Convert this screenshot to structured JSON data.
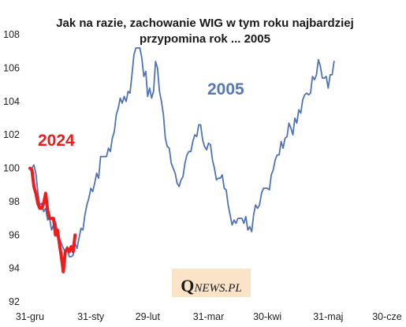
{
  "chart_data": {
    "type": "line",
    "title": "Jak na razie, zachowanie WIG w tym roku najbardziej przypomina rok ... 2005",
    "title_lines": [
      "Jak na razie, zachowanie WIG w tym roku najbardziej",
      "przypomina rok ... 2005"
    ],
    "xlabel": "",
    "ylabel": "",
    "ylim": [
      92,
      108
    ],
    "yticks": [
      92,
      94,
      96,
      98,
      100,
      102,
      104,
      106,
      108
    ],
    "xlim": [
      0,
      182
    ],
    "xticks": [
      {
        "x": 0,
        "label": "31-gru"
      },
      {
        "x": 31,
        "label": "31-sty"
      },
      {
        "x": 60,
        "label": "29-lut"
      },
      {
        "x": 91,
        "label": "31-mar"
      },
      {
        "x": 121,
        "label": "30-kwi"
      },
      {
        "x": 152,
        "label": "31-maj"
      },
      {
        "x": 182,
        "label": "30-cze"
      }
    ],
    "grid": false,
    "legend": "none",
    "series": [
      {
        "name": "2005",
        "color": "#4f73b6",
        "points": [
          [
            0,
            100.0
          ],
          [
            1,
            100.0
          ],
          [
            2,
            100.2
          ],
          [
            3,
            99.7
          ],
          [
            4,
            98.6
          ],
          [
            5,
            97.8
          ],
          [
            6,
            97.9
          ],
          [
            7,
            97.4
          ],
          [
            8,
            97.6
          ],
          [
            9,
            96.9
          ],
          [
            10,
            97.0
          ],
          [
            11,
            96.3
          ],
          [
            12,
            96.6
          ],
          [
            13,
            96.8
          ],
          [
            14,
            96.2
          ],
          [
            15,
            95.8
          ],
          [
            16,
            95.5
          ],
          [
            17,
            95.2
          ],
          [
            18,
            95.0
          ],
          [
            19,
            95.3
          ],
          [
            20,
            94.7
          ],
          [
            21,
            94.7
          ],
          [
            22,
            94.8
          ],
          [
            23,
            95.5
          ],
          [
            24,
            95.2
          ],
          [
            25,
            95.8
          ],
          [
            26,
            96.4
          ],
          [
            27,
            96.3
          ],
          [
            28,
            97.2
          ],
          [
            29,
            97.8
          ],
          [
            30,
            98.2
          ],
          [
            31,
            98.8
          ],
          [
            32,
            98.6
          ],
          [
            33,
            99.1
          ],
          [
            34,
            99.7
          ],
          [
            35,
            99.4
          ],
          [
            36,
            100.7
          ],
          [
            37,
            100.7
          ],
          [
            38,
            100.7
          ],
          [
            39,
            100.7
          ],
          [
            40,
            101.2
          ],
          [
            41,
            101.0
          ],
          [
            42,
            101.8
          ],
          [
            43,
            102.2
          ],
          [
            44,
            103.2
          ],
          [
            45,
            103.6
          ],
          [
            46,
            104.2
          ],
          [
            47,
            103.9
          ],
          [
            48,
            104.3
          ],
          [
            49,
            104.0
          ],
          [
            50,
            104.6
          ],
          [
            51,
            104.5
          ],
          [
            52,
            105.6
          ],
          [
            53,
            106.8
          ],
          [
            54,
            107.2
          ],
          [
            55,
            107.2
          ],
          [
            56,
            107.2
          ],
          [
            57,
            106.6
          ],
          [
            58,
            105.5
          ],
          [
            59,
            105.8
          ],
          [
            60,
            104.3
          ],
          [
            61,
            104.8
          ],
          [
            62,
            104.2
          ],
          [
            63,
            104.6
          ],
          [
            64,
            106.4
          ],
          [
            65,
            106.0
          ],
          [
            66,
            104.6
          ],
          [
            67,
            104.0
          ],
          [
            68,
            103.2
          ],
          [
            69,
            101.8
          ],
          [
            70,
            101.3
          ],
          [
            71,
            101.2
          ],
          [
            72,
            100.3
          ],
          [
            73,
            100.0
          ],
          [
            74,
            99.7
          ],
          [
            75,
            99.1
          ],
          [
            76,
            98.9
          ],
          [
            77,
            99.3
          ],
          [
            78,
            99.5
          ],
          [
            79,
            100.3
          ],
          [
            80,
            100.8
          ],
          [
            81,
            101.0
          ],
          [
            82,
            101.0
          ],
          [
            83,
            101.6
          ],
          [
            84,
            102.0
          ],
          [
            85,
            101.9
          ],
          [
            86,
            102.6
          ],
          [
            87,
            102.6
          ],
          [
            88,
            101.7
          ],
          [
            89,
            101.3
          ],
          [
            90,
            101.1
          ],
          [
            91,
            101.5
          ],
          [
            92,
            101.4
          ],
          [
            93,
            100.5
          ],
          [
            94,
            100.0
          ],
          [
            95,
            99.3
          ],
          [
            96,
            99.4
          ],
          [
            97,
            99.4
          ],
          [
            98,
            99.6
          ],
          [
            99,
            98.8
          ],
          [
            100,
            98.7
          ],
          [
            101,
            97.8
          ],
          [
            102,
            97.2
          ],
          [
            103,
            96.6
          ],
          [
            104,
            96.9
          ],
          [
            105,
            96.7
          ],
          [
            106,
            97.0
          ],
          [
            107,
            97.0
          ],
          [
            108,
            97.0
          ],
          [
            109,
            96.7
          ],
          [
            110,
            97.1
          ],
          [
            111,
            96.3
          ],
          [
            112,
            96.5
          ],
          [
            113,
            96.2
          ],
          [
            114,
            97.2
          ],
          [
            115,
            97.8
          ],
          [
            116,
            97.6
          ],
          [
            117,
            97.8
          ],
          [
            118,
            98.5
          ],
          [
            119,
            98.8
          ],
          [
            120,
            98.8
          ],
          [
            121,
            98.8
          ],
          [
            122,
            98.7
          ],
          [
            123,
            99.6
          ],
          [
            124,
            99.9
          ],
          [
            125,
            100.5
          ],
          [
            126,
            100.8
          ],
          [
            127,
            100.8
          ],
          [
            128,
            101.6
          ],
          [
            129,
            101.2
          ],
          [
            130,
            101.8
          ],
          [
            131,
            101.9
          ],
          [
            132,
            102.7
          ],
          [
            133,
            102.4
          ],
          [
            134,
            102.0
          ],
          [
            135,
            103.0
          ],
          [
            136,
            102.7
          ],
          [
            137,
            103.5
          ],
          [
            138,
            103.3
          ],
          [
            139,
            104.1
          ],
          [
            140,
            104.4
          ],
          [
            141,
            104.5
          ],
          [
            142,
            104.4
          ],
          [
            143,
            104.5
          ],
          [
            144,
            105.5
          ],
          [
            145,
            105.3
          ],
          [
            146,
            105.6
          ],
          [
            147,
            106.5
          ],
          [
            148,
            106.1
          ],
          [
            149,
            105.4
          ],
          [
            150,
            105.4
          ],
          [
            151,
            105.5
          ],
          [
            152,
            104.8
          ],
          [
            153,
            105.6
          ],
          [
            154,
            105.6
          ],
          [
            155,
            106.4
          ]
        ]
      },
      {
        "name": "2024",
        "color": "#ee1c1c",
        "points": [
          [
            0,
            100.0
          ],
          [
            1,
            99.9
          ],
          [
            2,
            98.9
          ],
          [
            3,
            98.5
          ],
          [
            4,
            97.9
          ],
          [
            5,
            97.6
          ],
          [
            6,
            97.6
          ],
          [
            7,
            97.9
          ],
          [
            8,
            98.5
          ],
          [
            9,
            97.5
          ],
          [
            10,
            97.0
          ],
          [
            11,
            97.0
          ],
          [
            12,
            97.0
          ],
          [
            13,
            96.0
          ],
          [
            14,
            96.3
          ],
          [
            15,
            95.5
          ],
          [
            16,
            94.7
          ],
          [
            17,
            93.8
          ],
          [
            18,
            95.0
          ],
          [
            19,
            95.2
          ],
          [
            20,
            95.0
          ],
          [
            21,
            95.3
          ],
          [
            22,
            95.0
          ],
          [
            23,
            96.0
          ]
        ]
      }
    ],
    "annotations": [
      {
        "text": "2005",
        "color": "#5578b9"
      },
      {
        "text": "2024",
        "color": "#ee1c1c"
      }
    ],
    "watermark": {
      "big": "Q",
      "small": "NEWS.PL"
    }
  }
}
